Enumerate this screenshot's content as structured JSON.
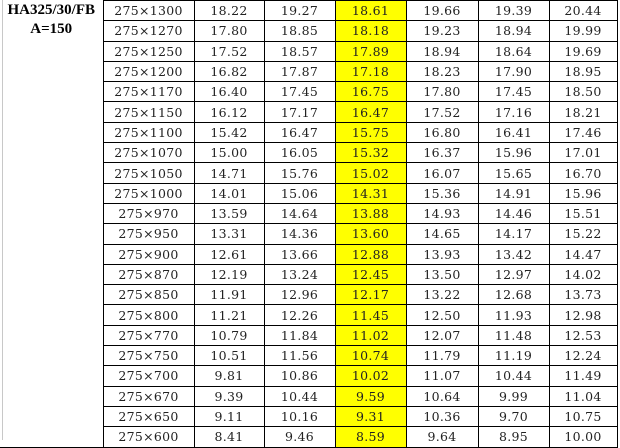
{
  "header": {
    "line1": "HA325/30/FB",
    "line2": "A=150"
  },
  "highlight_color": "#ffff00",
  "rows": [
    {
      "size": "275×1300",
      "values": [
        "18.22",
        "19.27",
        "18.61",
        "19.66",
        "19.39",
        "20.44"
      ]
    },
    {
      "size": "275×1270",
      "values": [
        "17.80",
        "18.85",
        "18.18",
        "19.23",
        "18.94",
        "19.99"
      ]
    },
    {
      "size": "275×1250",
      "values": [
        "17.52",
        "18.57",
        "17.89",
        "18.94",
        "18.64",
        "19.69"
      ]
    },
    {
      "size": "275×1200",
      "values": [
        "16.82",
        "17.87",
        "17.18",
        "18.23",
        "17.90",
        "18.95"
      ]
    },
    {
      "size": "275×1170",
      "values": [
        "16.40",
        "17.45",
        "16.75",
        "17.80",
        "17.45",
        "18.50"
      ]
    },
    {
      "size": "275×1150",
      "values": [
        "16.12",
        "17.17",
        "16.47",
        "17.52",
        "17.16",
        "18.21"
      ]
    },
    {
      "size": "275×1100",
      "values": [
        "15.42",
        "16.47",
        "15.75",
        "16.80",
        "16.41",
        "17.46"
      ]
    },
    {
      "size": "275×1070",
      "values": [
        "15.00",
        "16.05",
        "15.32",
        "16.37",
        "15.96",
        "17.01"
      ]
    },
    {
      "size": "275×1050",
      "values": [
        "14.71",
        "15.76",
        "15.02",
        "16.07",
        "15.65",
        "16.70"
      ]
    },
    {
      "size": "275×1000",
      "values": [
        "14.01",
        "15.06",
        "14.31",
        "15.36",
        "14.91",
        "15.96"
      ]
    },
    {
      "size": "275×970",
      "values": [
        "13.59",
        "14.64",
        "13.88",
        "14.93",
        "14.46",
        "15.51"
      ]
    },
    {
      "size": "275×950",
      "values": [
        "13.31",
        "14.36",
        "13.60",
        "14.65",
        "14.17",
        "15.22"
      ]
    },
    {
      "size": "275×900",
      "values": [
        "12.61",
        "13.66",
        "12.88",
        "13.93",
        "13.42",
        "14.47"
      ]
    },
    {
      "size": "275×870",
      "values": [
        "12.19",
        "13.24",
        "12.45",
        "13.50",
        "12.97",
        "14.02"
      ]
    },
    {
      "size": "275×850",
      "values": [
        "11.91",
        "12.96",
        "12.17",
        "13.22",
        "12.68",
        "13.73"
      ]
    },
    {
      "size": "275×800",
      "values": [
        "11.21",
        "12.26",
        "11.45",
        "12.50",
        "11.93",
        "12.98"
      ]
    },
    {
      "size": "275×770",
      "values": [
        "10.79",
        "11.84",
        "11.02",
        "12.07",
        "11.48",
        "12.53"
      ]
    },
    {
      "size": "275×750",
      "values": [
        "10.51",
        "11.56",
        "10.74",
        "11.79",
        "11.19",
        "12.24"
      ]
    },
    {
      "size": "275×700",
      "values": [
        "9.81",
        "10.86",
        "10.02",
        "11.07",
        "10.44",
        "11.49"
      ]
    },
    {
      "size": "275×670",
      "values": [
        "9.39",
        "10.44",
        "9.59",
        "10.64",
        "9.99",
        "11.04"
      ]
    },
    {
      "size": "275×650",
      "values": [
        "9.11",
        "10.16",
        "9.31",
        "10.36",
        "9.70",
        "10.75"
      ]
    },
    {
      "size": "275×600",
      "values": [
        "8.41",
        "9.46",
        "8.59",
        "9.64",
        "8.95",
        "10.00"
      ]
    }
  ]
}
